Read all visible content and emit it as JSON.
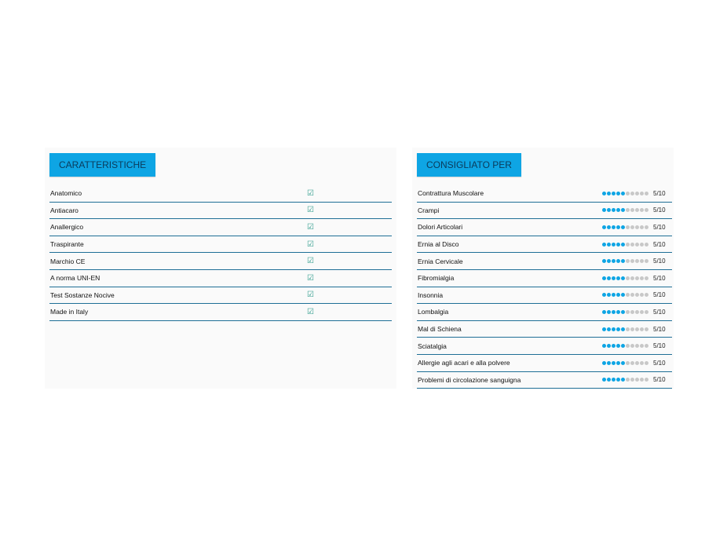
{
  "caratteristiche": {
    "title": "CARATTERISTICHE",
    "check_icon": "check-circle-icon",
    "items": [
      "Anatomico",
      "Antiacaro",
      "Anallergico",
      "Traspirante",
      "Marchio CE",
      "A norma UNI-EN",
      "Test Sostanze Nocive",
      "Made in Italy"
    ]
  },
  "consigliato": {
    "title": "CONSIGLIATO PER",
    "max": 10,
    "items": [
      {
        "label": "Contrattura Muscolare",
        "value": 5,
        "score": "5/10"
      },
      {
        "label": "Crampi",
        "value": 5,
        "score": "5/10"
      },
      {
        "label": "Dolori Articolari",
        "value": 5,
        "score": "5/10"
      },
      {
        "label": "Ernia al Disco",
        "value": 5,
        "score": "5/10"
      },
      {
        "label": "Ernia Cervicale",
        "value": 5,
        "score": "5/10"
      },
      {
        "label": "Fibromialgia",
        "value": 5,
        "score": "5/10"
      },
      {
        "label": "Insonnia",
        "value": 5,
        "score": "5/10"
      },
      {
        "label": "Lombalgia",
        "value": 5,
        "score": "5/10"
      },
      {
        "label": "Mal di Schiena",
        "value": 5,
        "score": "5/10"
      },
      {
        "label": "Sciatalgia",
        "value": 5,
        "score": "5/10"
      },
      {
        "label": "Allergie agli acari e alla polvere",
        "value": 5,
        "score": "5/10"
      },
      {
        "label": "Problemi di circolazione sanguigna",
        "value": 5,
        "score": "5/10"
      }
    ]
  },
  "colors": {
    "accent": "#0ea5e4",
    "divider": "#1f6f96",
    "dot_off": "#c8c8c8"
  }
}
